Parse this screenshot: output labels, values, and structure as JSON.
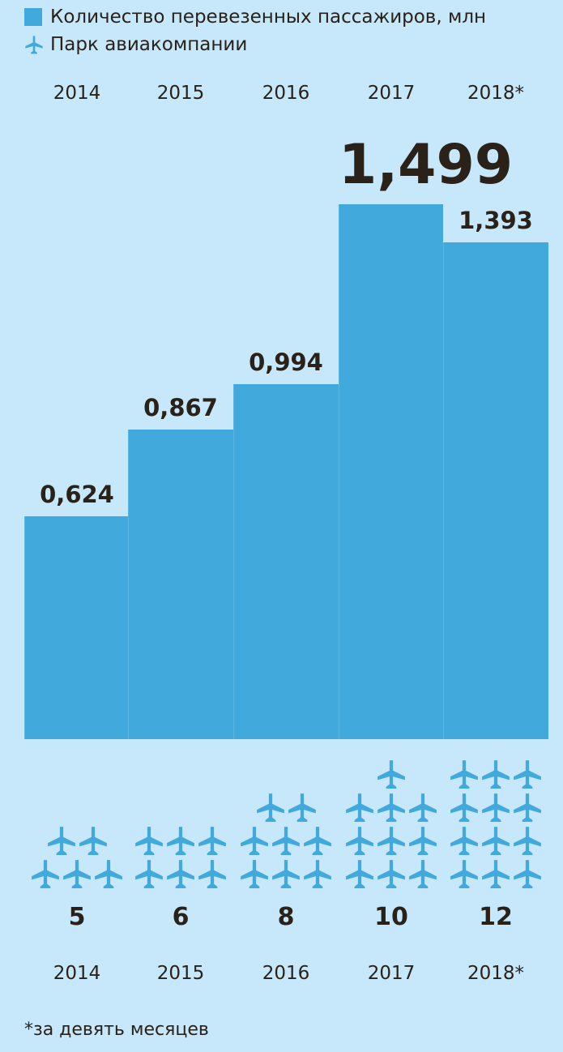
{
  "legend": [
    {
      "label": "Количество перевезенных пассажиров, млн",
      "icon": "square-swatch-icon"
    },
    {
      "label": "Парк авиакомпании",
      "icon": "airplane-icon"
    }
  ],
  "colors": {
    "background": "#c6e8fa",
    "bar": "#42a9dc",
    "plane": "#42a9dc",
    "text": "#2a2118"
  },
  "chart_data": {
    "type": "bar",
    "categories": [
      "2014",
      "2015",
      "2016",
      "2017",
      "2018*"
    ],
    "series": [
      {
        "name": "Количество перевезенных пассажиров, млн",
        "values": [
          0.624,
          0.867,
          0.994,
          1.499,
          1.393
        ],
        "labels": [
          "0,624",
          "0,867",
          "0,994",
          "1,499",
          "1,393"
        ]
      },
      {
        "name": "Парк авиакомпании",
        "values": [
          5,
          6,
          8,
          10,
          12
        ],
        "labels": [
          "5",
          "6",
          "8",
          "10",
          "12"
        ]
      }
    ],
    "ylim": [
      0,
      1.499
    ],
    "grid": false,
    "legend_placement": "top-left"
  },
  "footnote": "*за девять месяцев"
}
